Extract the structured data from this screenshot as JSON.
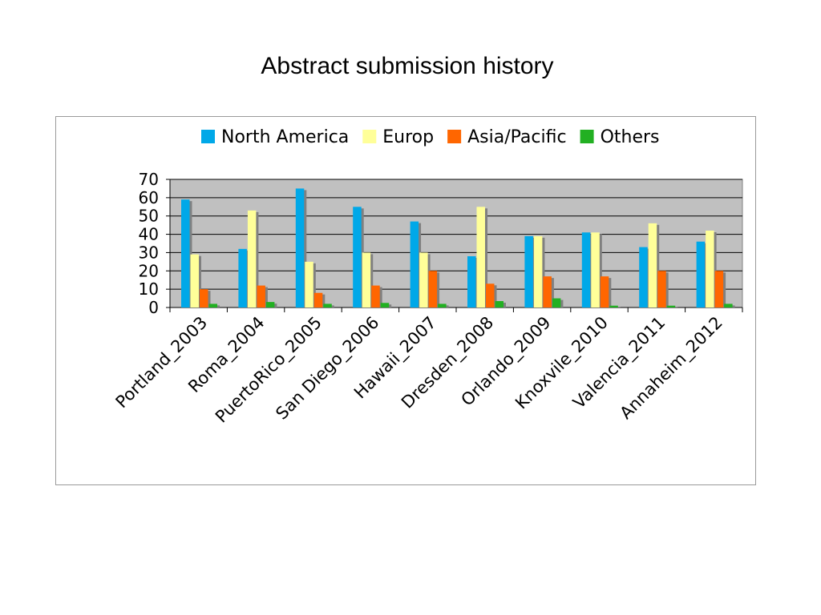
{
  "slide": {
    "title": "Abstract submission history"
  },
  "chart_data": {
    "type": "bar",
    "title": "",
    "xlabel": "",
    "ylabel": "",
    "ylim": [
      0,
      70
    ],
    "yticks": [
      0,
      10,
      20,
      30,
      40,
      50,
      60,
      70
    ],
    "grid": true,
    "legend_position": "top",
    "categories": [
      "Portland_2003",
      "Roma_2004",
      "PuertoRico_2005",
      "San Diego_2006",
      "Hawaii_2007",
      "Dresden_2008",
      "Orlando_2009",
      "Knoxvile_2010",
      "Valencia_2011",
      "Annaheim_2012"
    ],
    "series": [
      {
        "name": "North America",
        "color": "#00a8e8",
        "values": [
          59,
          32,
          65,
          55,
          47,
          28,
          39,
          41,
          33,
          36
        ]
      },
      {
        "name": "Europ",
        "color": "#ffff99",
        "values": [
          29,
          53,
          25,
          30,
          30,
          55,
          39,
          41,
          46,
          42
        ]
      },
      {
        "name": "Asia/Pacific",
        "color": "#ff6600",
        "values": [
          10,
          12,
          8,
          12,
          20,
          13,
          17,
          17,
          20,
          20
        ]
      },
      {
        "name": "Others",
        "color": "#22b022",
        "values": [
          2,
          3,
          2,
          2.5,
          2,
          3.5,
          5,
          1,
          1,
          2
        ]
      }
    ],
    "plot_background": "#c0c0c0"
  }
}
